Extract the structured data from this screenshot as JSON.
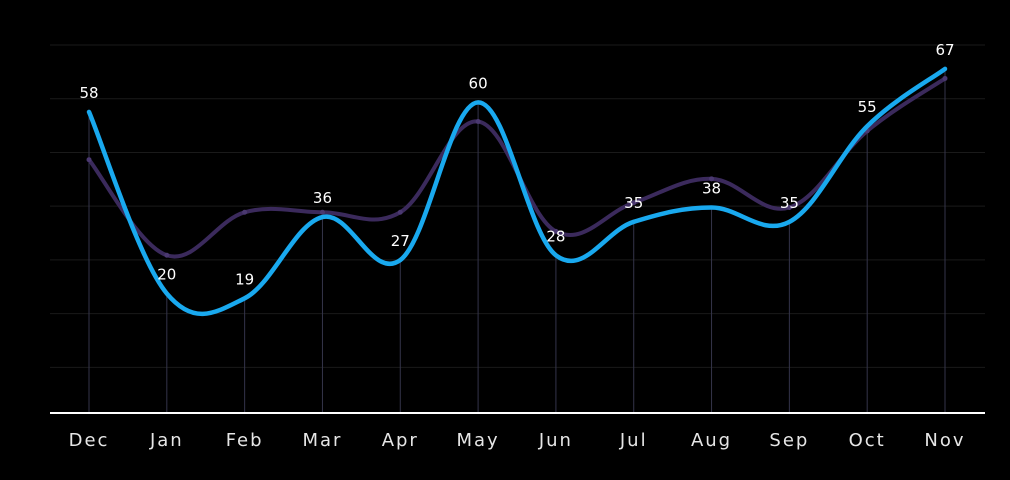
{
  "chart_data": {
    "type": "line",
    "categories": [
      "Dec",
      "Jan",
      "Feb",
      "Mar",
      "Apr",
      "May",
      "Jun",
      "Jul",
      "Aug",
      "Sep",
      "Oct",
      "Nov"
    ],
    "series": [
      {
        "values": [
          58,
          20,
          19,
          36,
          27,
          60,
          28,
          35,
          38,
          35,
          55,
          67
        ],
        "color": "#19a9ef",
        "labeled": true
      },
      {
        "values": [
          48,
          28,
          37,
          37,
          37,
          56,
          33,
          39,
          44,
          38,
          54,
          65
        ],
        "color": "#3b2a5c",
        "labeled": false
      }
    ],
    "ylim": [
      -5,
      72
    ],
    "grid": true,
    "colors": {
      "background": "#000000",
      "axis": "#ffffff",
      "grid": "#1a1a1a",
      "vertical_drop": "#34344a"
    }
  }
}
